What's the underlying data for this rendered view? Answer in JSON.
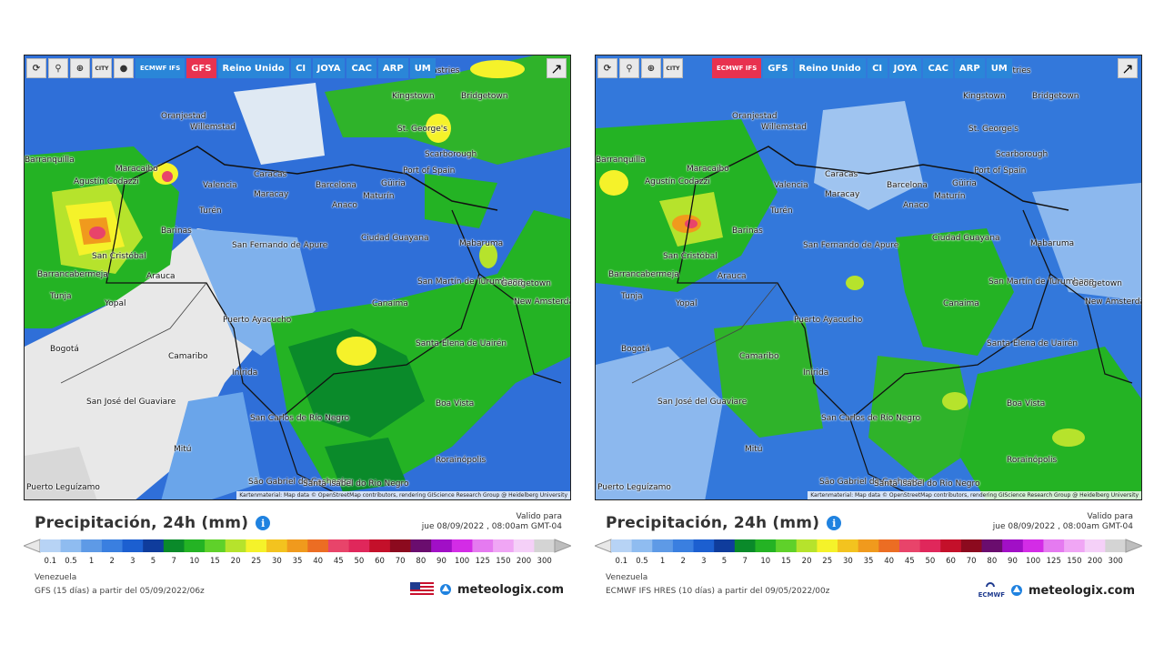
{
  "toolbar": {
    "city_label": "CITY",
    "models": [
      "ECMWF IFS",
      "GFS",
      "Reino Unido",
      "CI",
      "JOYA",
      "CAC",
      "ARP",
      "UM"
    ]
  },
  "cities": [
    "Castries",
    "Kingstown",
    "Bridgetown",
    "Oranjestad",
    "Willemstad",
    "St. George's",
    "Scarborough",
    "Port of Spain",
    "Barranquilla",
    "Maracaibo",
    "Agustín Codazzi",
    "Caracas",
    "Valencia",
    "Maracay",
    "Barcelona",
    "Güiria",
    "Maturín",
    "Anaco",
    "Turén",
    "Barinas",
    "San Fernando de Apure",
    "Ciudad Guayana",
    "Mabaruma",
    "San Cristóbal",
    "Arauca",
    "Barrancabermeja",
    "San Martín de Turumbang",
    "Georgetown",
    "New Amsterdam",
    "Canaima",
    "Puerto Ayacucho",
    "Tunja",
    "Yopal",
    "Bogotá",
    "Santa Elena de Uairén",
    "Camaribo",
    "Inírida",
    "San José del Guaviare",
    "Boa Vista",
    "San Carlos de Río Negro",
    "Rorainópolis",
    "Mitú",
    "São Gabriel da Cachoeira",
    "Santa Isabel do Rio Negro",
    "Puerto Leguízamo"
  ],
  "attribution": "Kartenmaterial: Map data © OpenStreetMap contributors, rendering GIScience Research Group @ Heidelberg University",
  "title": "Precipitación, 24h (mm)",
  "valid_label": "Valido para",
  "scale_ticks": [
    "0.1",
    "0.5",
    "1",
    "2",
    "3",
    "5",
    "7",
    "10",
    "15",
    "20",
    "25",
    "30",
    "35",
    "40",
    "45",
    "50",
    "60",
    "70",
    "80",
    "90",
    "100",
    "125",
    "150",
    "200",
    "300"
  ],
  "scale_colors": [
    "#b7d3f5",
    "#8fbcf0",
    "#5e9ae6",
    "#3a7fe0",
    "#1c5fd0",
    "#0f3c9c",
    "#0a8a2a",
    "#24b324",
    "#5fd12a",
    "#b6e32c",
    "#f5f22a",
    "#f3c31f",
    "#f09a1d",
    "#ec6d23",
    "#e8446a",
    "#e0275b",
    "#c4102a",
    "#8c0a1e",
    "#6a0d6e",
    "#a10fc6",
    "#d32ce6",
    "#e57af0",
    "#f0a6f5",
    "#f5d0f8",
    "#d4d4d4"
  ],
  "region": "Venezuela",
  "brand": "meteologix.com",
  "left": {
    "active_model": "GFS",
    "valid_time": "jue 08/09/2022 , 08:00am GMT-04",
    "run_info": "GFS (15 días) a partir del 05/09/2022/06z",
    "flag": "us-flag"
  },
  "right": {
    "active_model": "ECMWF IFS",
    "valid_time": "jue 08/09/2022 , 08:00am GMT-04",
    "run_info": "ECMWF IFS HRES (10 días) a partir del 09/05/2022/00z",
    "logo_text": "ECMWF"
  }
}
